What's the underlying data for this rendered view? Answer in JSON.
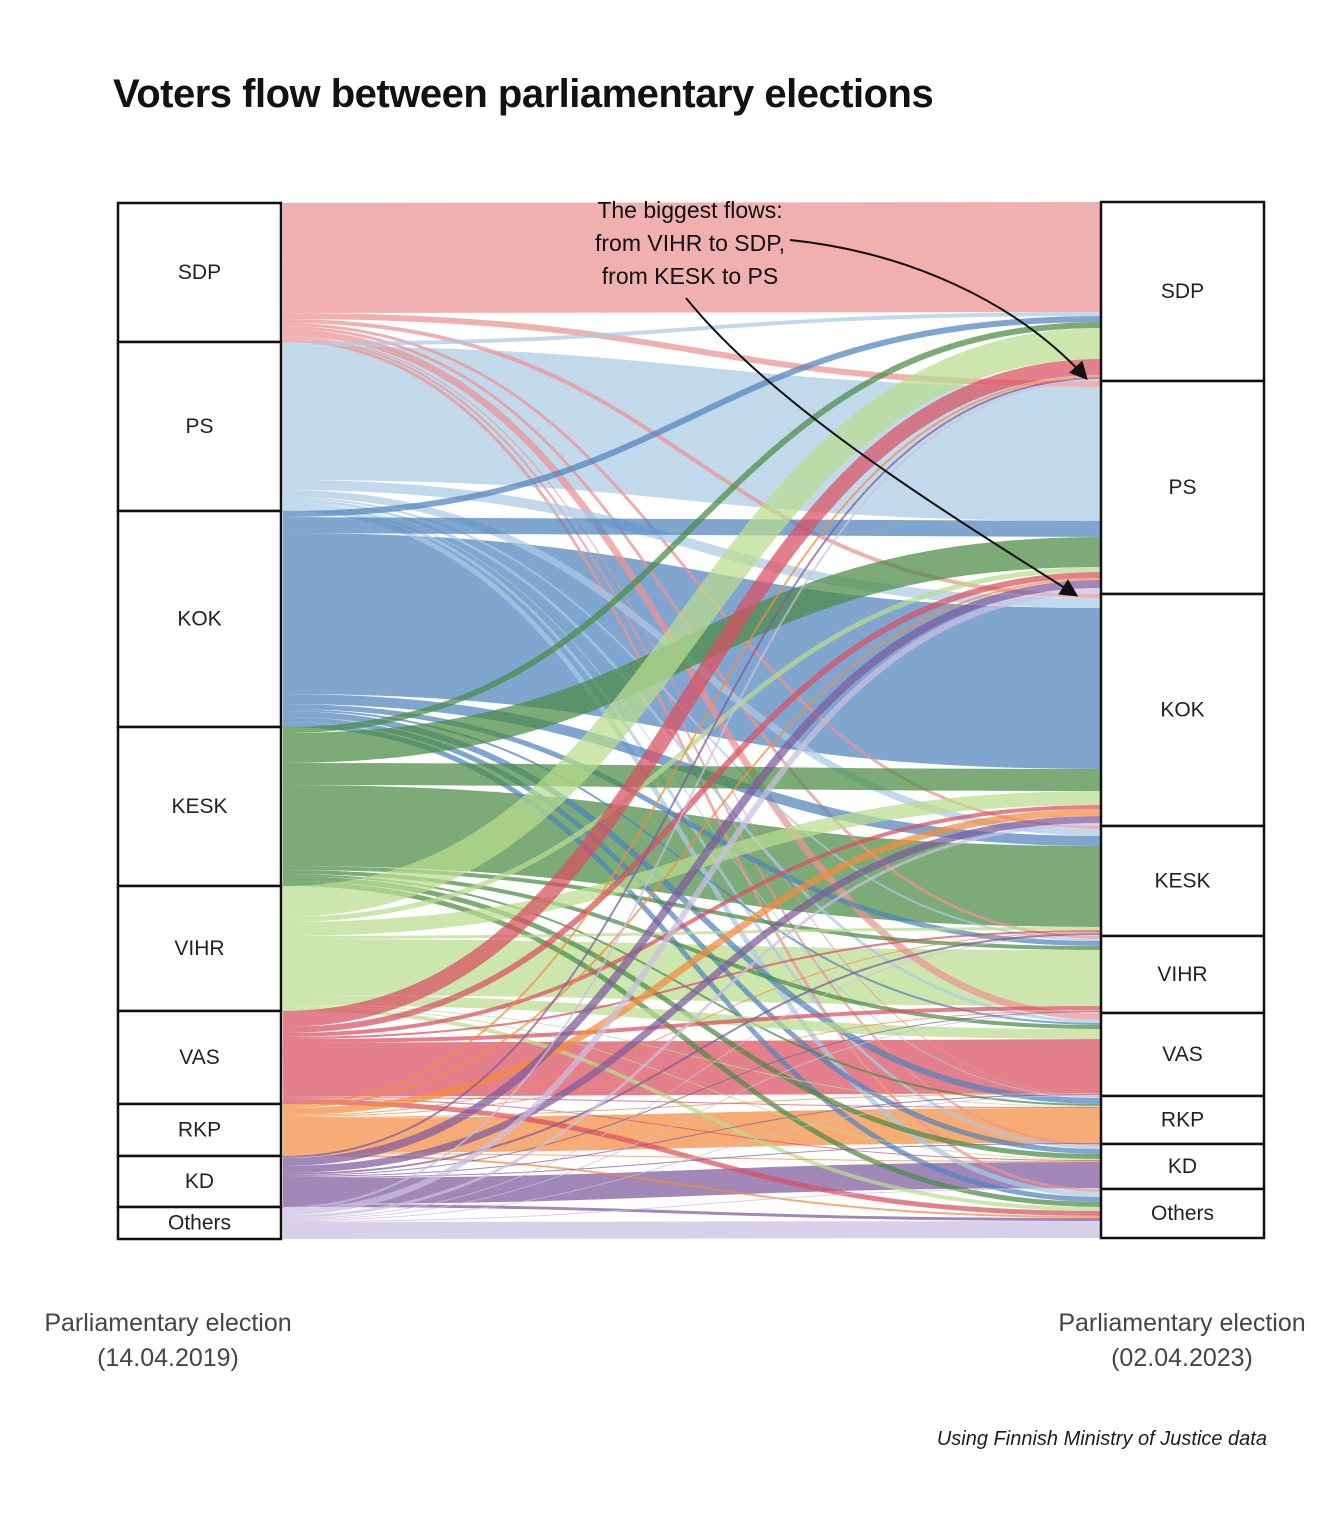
{
  "page": {
    "title": "Voters flow between parliamentary elections"
  },
  "chart_data": {
    "type": "sankey",
    "title": "Voters flow between parliamentary elections",
    "annotation": {
      "lines": [
        "The biggest flows:",
        "from VIHR to SDP,",
        "from KESK to PS"
      ]
    },
    "axis_labels": {
      "left": [
        "Parliamentary election",
        "(14.04.2019)"
      ],
      "right": [
        "Parliamentary election",
        "(02.04.2023)"
      ]
    },
    "credit": "Using Finnish Ministry of Justice data",
    "parties": [
      "SDP",
      "PS",
      "KOK",
      "KESK",
      "VIHR",
      "VAS",
      "RKP",
      "KD",
      "Others"
    ],
    "colors": {
      "SDP": "#eb9191",
      "PS": "#a9cbe3",
      "KOK": "#4f84bd",
      "KESK": "#4a8a44",
      "VIHR": "#b9dc8f",
      "VAS": "#d94f60",
      "RKP": "#f28c3f",
      "KD": "#7d5a9e",
      "Others": "#cabfe0"
    },
    "flow_opacity": 0.72,
    "matrix": {
      "rows": "party in 2019 election (source)",
      "cols": "party in 2023 election (target)",
      "units": "relative voter flow (estimated from band thickness, px)",
      "values": [
        [
          110,
          6,
          4,
          3,
          3,
          7,
          1,
          2,
          3
        ],
        [
          4,
          134,
          10,
          7,
          2,
          3,
          1,
          3,
          5
        ],
        [
          6,
          16,
          161,
          10,
          5,
          2,
          6,
          5,
          5
        ],
        [
          6,
          30,
          22,
          81,
          4,
          4,
          2,
          5,
          5
        ],
        [
          31,
          5,
          14,
          3,
          56,
          10,
          1,
          1,
          4
        ],
        [
          16,
          6,
          4,
          2,
          4,
          54,
          1,
          1,
          5
        ],
        [
          2,
          2,
          7,
          1,
          1,
          1,
          35,
          1,
          2
        ],
        [
          2,
          8,
          7,
          2,
          1,
          1,
          1,
          26,
          3
        ],
        [
          2,
          6,
          3,
          1,
          1,
          1,
          0,
          1,
          17
        ]
      ],
      "biggest_flows": [
        {
          "from": "VIHR",
          "to": "SDP"
        },
        {
          "from": "KESK",
          "to": "PS"
        }
      ]
    },
    "legend": "flows colored by 2019 source party; nodes are white boxes with black borders"
  }
}
